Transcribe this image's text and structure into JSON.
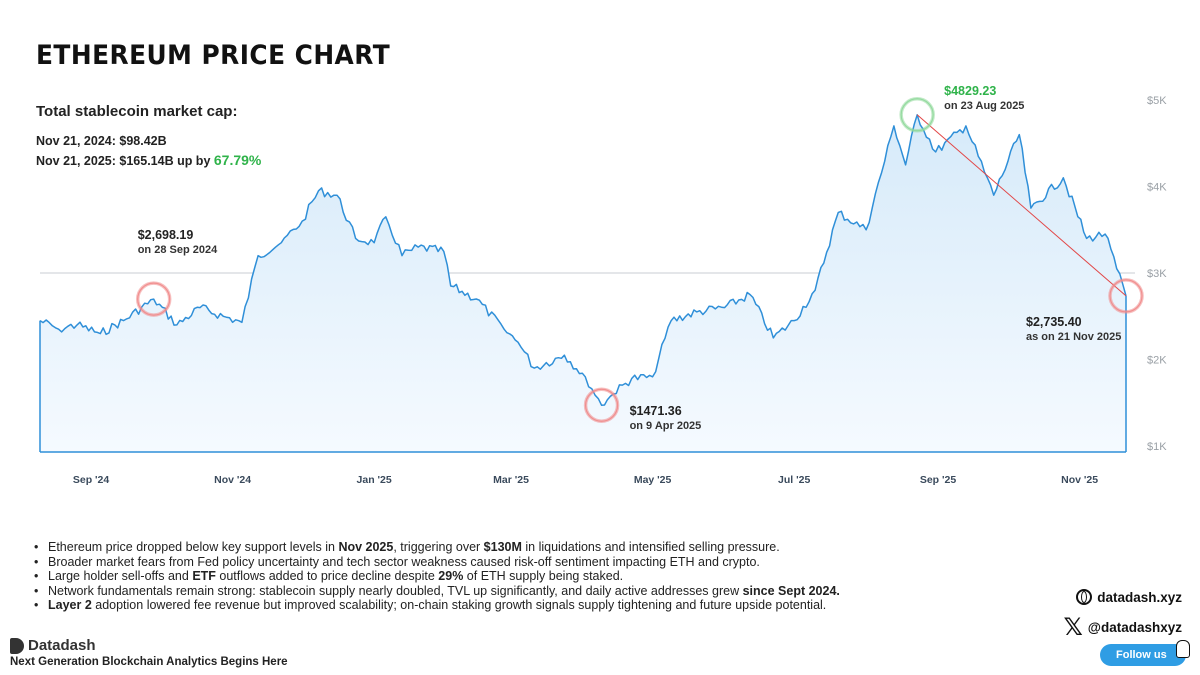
{
  "title": "ETHEREUM PRICE CHART",
  "stats": {
    "heading": "Total stablecoin market cap:",
    "line1": "Nov 21, 2024: $98.42B",
    "line2_prefix": "Nov 21, 2025: $165.14B up by",
    "line2_pct": "67.79%"
  },
  "colors": {
    "line": "#2f8fd8",
    "fill_top": "#d6eaf9",
    "trend": "#e24646",
    "green": "#2fb34a",
    "red_ring": "#f08a8a"
  },
  "chart_data": {
    "type": "area",
    "ylim": [
      1000,
      5000
    ],
    "y_ticks": [
      {
        "value": 5000,
        "label": "$5K"
      },
      {
        "value": 4000,
        "label": "$4K"
      },
      {
        "value": 3000,
        "label": "$3K"
      },
      {
        "value": 2000,
        "label": "$2K"
      },
      {
        "value": 1000,
        "label": "$1K"
      }
    ],
    "x_ticks": [
      "Sep '24",
      "Nov '24",
      "Jan '25",
      "Mar '25",
      "May '25",
      "Jul '25",
      "Sep '25",
      "Nov '25"
    ],
    "x_tick_dates": [
      "2024-09-01",
      "2024-11-01",
      "2025-01-01",
      "2025-03-01",
      "2025-05-01",
      "2025-07-01",
      "2025-09-01",
      "2025-11-01"
    ],
    "reference_line_value": 3000,
    "series": [
      {
        "points": [
          [
            "2024-08-10",
            2450
          ],
          [
            "2024-08-18",
            2350
          ],
          [
            "2024-08-26",
            2400
          ],
          [
            "2024-09-05",
            2300
          ],
          [
            "2024-09-15",
            2450
          ],
          [
            "2024-09-28",
            2698
          ],
          [
            "2024-10-08",
            2400
          ],
          [
            "2024-10-18",
            2600
          ],
          [
            "2024-10-28",
            2500
          ],
          [
            "2024-11-05",
            2430
          ],
          [
            "2024-11-12",
            3200
          ],
          [
            "2024-11-22",
            3350
          ],
          [
            "2024-12-01",
            3600
          ],
          [
            "2024-12-08",
            3950
          ],
          [
            "2024-12-16",
            3900
          ],
          [
            "2024-12-24",
            3400
          ],
          [
            "2025-01-01",
            3350
          ],
          [
            "2025-01-06",
            3650
          ],
          [
            "2025-01-13",
            3200
          ],
          [
            "2025-01-20",
            3300
          ],
          [
            "2025-01-31",
            3250
          ],
          [
            "2025-02-03",
            2850
          ],
          [
            "2025-02-14",
            2700
          ],
          [
            "2025-02-26",
            2350
          ],
          [
            "2025-03-04",
            2200
          ],
          [
            "2025-03-11",
            1900
          ],
          [
            "2025-03-24",
            2050
          ],
          [
            "2025-04-02",
            1800
          ],
          [
            "2025-04-09",
            1471
          ],
          [
            "2025-04-14",
            1600
          ],
          [
            "2025-04-22",
            1780
          ],
          [
            "2025-05-01",
            1800
          ],
          [
            "2025-05-09",
            2450
          ],
          [
            "2025-05-20",
            2550
          ],
          [
            "2025-06-01",
            2600
          ],
          [
            "2025-06-12",
            2750
          ],
          [
            "2025-06-22",
            2250
          ],
          [
            "2025-07-01",
            2450
          ],
          [
            "2025-07-10",
            2800
          ],
          [
            "2025-07-20",
            3700
          ],
          [
            "2025-08-01",
            3500
          ],
          [
            "2025-08-13",
            4700
          ],
          [
            "2025-08-18",
            4250
          ],
          [
            "2025-08-23",
            4829
          ],
          [
            "2025-08-31",
            4400
          ],
          [
            "2025-09-13",
            4700
          ],
          [
            "2025-09-25",
            3900
          ],
          [
            "2025-10-06",
            4600
          ],
          [
            "2025-10-11",
            3750
          ],
          [
            "2025-10-25",
            4100
          ],
          [
            "2025-11-04",
            3400
          ],
          [
            "2025-11-12",
            3450
          ],
          [
            "2025-11-17",
            3050
          ],
          [
            "2025-11-21",
            2735
          ]
        ]
      }
    ],
    "annotations": [
      {
        "date": "2024-09-28",
        "value": 2698.19,
        "label": "$2,698.19",
        "sublabel": "on 28 Sep 2024",
        "ring": "red",
        "side": "above"
      },
      {
        "date": "2025-04-09",
        "value": 1471.36,
        "label": "$1471.36",
        "sublabel": "on 9 Apr 2025",
        "ring": "red",
        "side": "right"
      },
      {
        "date": "2025-08-23",
        "value": 4829.23,
        "label": "$4829.23",
        "sublabel": "on 23 Aug 2025",
        "ring": "green",
        "side": "right"
      },
      {
        "date": "2025-11-21",
        "value": 2735.4,
        "label": "$2,735.40",
        "sublabel": "as on 21 Nov 2025",
        "ring": "red",
        "side": "below-left"
      }
    ],
    "trend_line": {
      "from": "2025-08-23",
      "to": "2025-11-21"
    }
  },
  "bullets": [
    [
      {
        "t": "Ethereum price dropped below key support levels in "
      },
      {
        "t": "Nov 2025",
        "b": true
      },
      {
        "t": ", triggering over "
      },
      {
        "t": "$130M",
        "b": true
      },
      {
        "t": " in liquidations and intensified selling pressure."
      }
    ],
    [
      {
        "t": "Broader market fears from Fed policy uncertainty and tech sector weakness caused risk-off sentiment impacting ETH and crypto."
      }
    ],
    [
      {
        "t": "Large holder sell-offs and "
      },
      {
        "t": "ETF",
        "b": true
      },
      {
        "t": " outflows added to price decline despite "
      },
      {
        "t": "29%",
        "b": true
      },
      {
        "t": " of ETH supply being staked."
      }
    ],
    [
      {
        "t": "Network fundamentals remain strong: stablecoin supply nearly doubled, TVL up significantly, and daily active addresses grew "
      },
      {
        "t": "since Sept 2024.",
        "b": true
      }
    ],
    [
      {
        "t": "Layer 2",
        "b": true
      },
      {
        "t": " adoption lowered fee revenue but improved scalability; on-chain staking growth signals supply tightening and future upside potential."
      }
    ]
  ],
  "brand": {
    "name": "Datadash",
    "tagline": "Next Generation Blockchain Analytics Begins Here"
  },
  "social": {
    "website": "datadash.xyz",
    "handle": "@datadashxyz",
    "follow": "Follow us"
  }
}
